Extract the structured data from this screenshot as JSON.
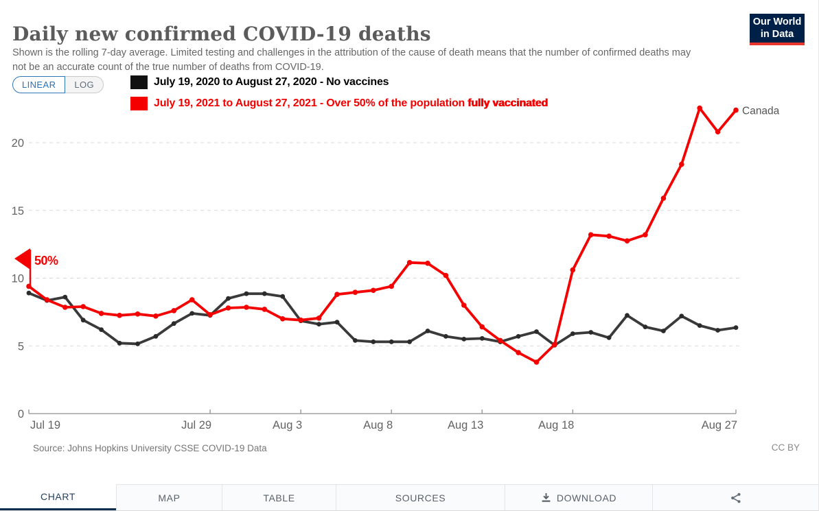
{
  "header": {
    "title": "Daily new confirmed COVID-19 deaths",
    "subtitle": "Shown is the rolling 7-day average. Limited testing and challenges in the attribution of the cause of death means that the number of confirmed deaths may not be an accurate count of the true number of deaths from COVID-19.",
    "logo": {
      "line1": "Our World",
      "line2": "in Data",
      "bg_color": "#002147",
      "bar_color": "#e8362c"
    }
  },
  "controls": {
    "linear_label": "LINEAR",
    "log_label": "LOG"
  },
  "legend": {
    "row2020": {
      "label": "July 19, 2020 to August 27, 2020 - No vaccines",
      "color": "#111111"
    },
    "row2021": {
      "label_main": "July 19, 2021 to August 27, 2021 - Over 50% of the population ",
      "label_heavy": "fully vaccinated",
      "color": "#f40000"
    }
  },
  "chart_data": {
    "type": "line",
    "title": "Daily new confirmed COVID-19 deaths",
    "entity": "Canada",
    "n_days": 40,
    "x_ticks": [
      {
        "label": "Jul 19",
        "day": 0
      },
      {
        "label": "Jul 29",
        "day": 10
      },
      {
        "label": "Aug 3",
        "day": 15
      },
      {
        "label": "Aug 8",
        "day": 20
      },
      {
        "label": "Aug 13",
        "day": 25
      },
      {
        "label": "Aug 18",
        "day": 30
      },
      {
        "label": "Aug 27",
        "day": 39
      }
    ],
    "yticks": [
      0,
      5,
      10,
      15,
      20
    ],
    "ylim": [
      0,
      23.3
    ],
    "grid": true,
    "series": [
      {
        "name": "July 19, 2020 to August 27, 2020 - No vaccines",
        "color": "#3a3a3a",
        "dot_color": "#2b2b2b",
        "values": [
          8.9,
          8.35,
          8.6,
          6.9,
          6.2,
          5.2,
          5.15,
          5.7,
          6.65,
          7.4,
          7.25,
          8.5,
          8.85,
          8.85,
          8.65,
          6.85,
          6.6,
          6.75,
          5.4,
          5.3,
          5.3,
          5.3,
          6.1,
          5.7,
          5.5,
          5.55,
          5.3,
          5.7,
          6.05,
          5.05,
          5.9,
          6.0,
          5.6,
          7.25,
          6.4,
          6.1,
          7.2,
          6.5,
          6.15,
          6.35
        ]
      },
      {
        "name": "July 19, 2021 to August 27, 2021 - Over 50% of the population fully vaccinated",
        "color": "#f40000",
        "dot_color": "#f40000",
        "values": [
          9.4,
          8.4,
          7.85,
          7.9,
          7.4,
          7.25,
          7.35,
          7.2,
          7.6,
          8.4,
          7.3,
          7.8,
          7.85,
          7.7,
          7.0,
          6.9,
          7.05,
          8.8,
          8.95,
          9.1,
          9.4,
          11.15,
          11.1,
          10.2,
          8.0,
          6.4,
          5.4,
          4.5,
          3.8,
          5.1,
          10.6,
          13.2,
          13.1,
          12.75,
          13.2,
          15.9,
          18.4,
          22.55,
          20.8,
          22.4
        ]
      }
    ],
    "annotations": {
      "vaccination_flag": {
        "label": "50%",
        "day": 0,
        "line_value": 9.4,
        "flag_top_value": 12.0,
        "color": "#f40000"
      },
      "entity_label": {
        "label": "Canada",
        "day": 39,
        "value": 22.4
      }
    }
  },
  "footer": {
    "source": "Source: Johns Hopkins University CSSE COVID-19 Data",
    "license": "CC BY"
  },
  "tabs": [
    {
      "label": "CHART",
      "active": true
    },
    {
      "label": "MAP"
    },
    {
      "label": "TABLE"
    },
    {
      "label": "SOURCES"
    },
    {
      "label": "DOWNLOAD"
    },
    {
      "label": ""
    }
  ]
}
